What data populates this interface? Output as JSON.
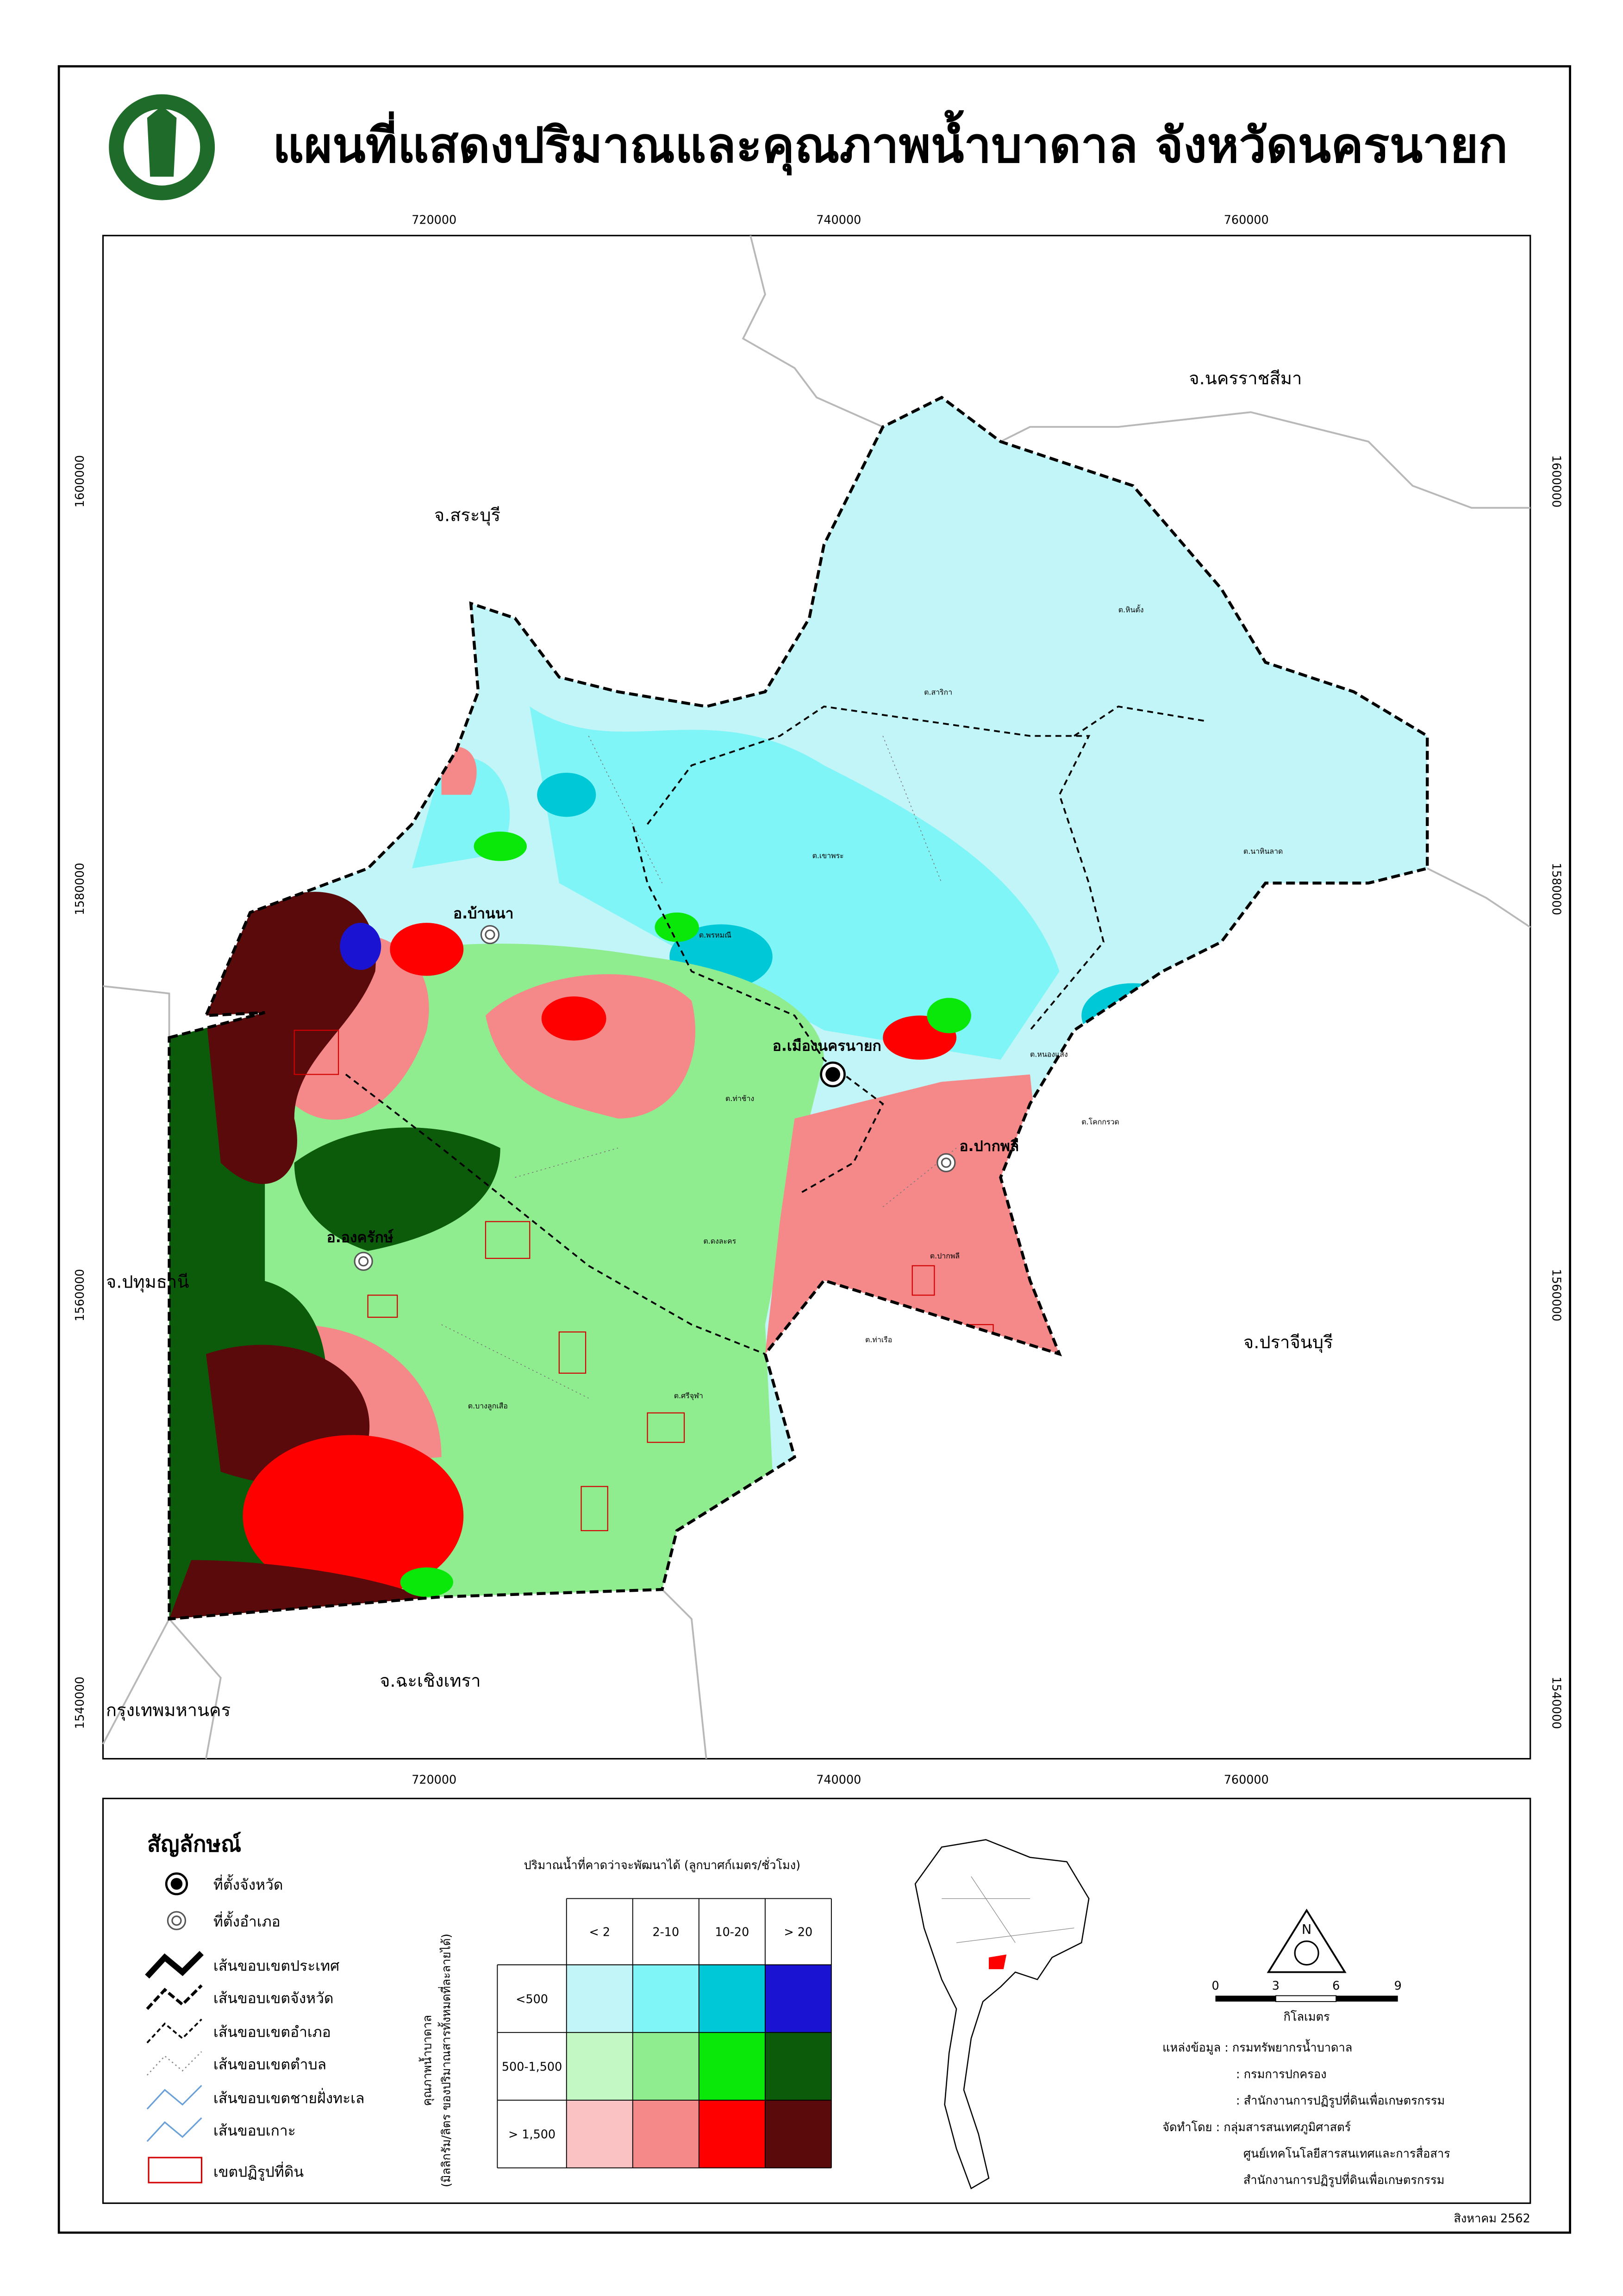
{
  "header": {
    "title": "แผนที่แสดงปริมาณและคุณภาพน้ำบาดาล จังหวัดนครนายก"
  },
  "map": {
    "coords_x": [
      720000,
      740000,
      760000
    ],
    "coords_y": [
      1600000,
      1580000,
      1560000,
      1540000
    ],
    "provinces": [
      "จ.สระบุรี",
      "จ.นครราชสีมา",
      "จ.ปทุมธานี",
      "จ.ปราจีนบุรี",
      "จ.ฉะเชิงเทรา",
      "กรุงเทพมหานคร"
    ],
    "districts": [
      "อ.บ้านนา",
      "อ.เมืองนครนายก",
      "อ.ปากพลี",
      "อ.องครักษ์"
    ],
    "subdistricts": [
      "ต.หินตั้ง",
      "ต.สาริกา",
      "ต.เขาพระ",
      "ต.นาหินลาด",
      "ต.พรหมณี",
      "ต.หนองแสง",
      "ต.โคกกรวด",
      "ต.ปากพลี",
      "ต.ท่าเรือ",
      "ต.ศรีจุฬา",
      "ต.บางลูกเสือ",
      "ต.ดงละคร",
      "ต.ท่าช้าง"
    ]
  },
  "legend": {
    "title": "สัญลักษณ์",
    "symbols": [
      "ที่ตั้งจังหวัด",
      "ที่ตั้งอำเภอ",
      "เส้นขอบเขตประเทศ",
      "เส้นขอบเขตจังหวัด",
      "เส้นขอบเขตอำเภอ",
      "เส้นขอบเขตตำบล",
      "เส้นขอบเขตชายฝั่งทะเล",
      "เส้นขอบเกาะ",
      "เขตปฏิรูปที่ดิน"
    ],
    "matrix": {
      "title": "ปริมาณน้ำที่คาดว่าจะพัฒนาได้ (ลูกบาศก์เมตร/ชั่วโมง)",
      "axis_label": "คุณภาพน้ำบาดาล",
      "axis_unit": "(มิลลิกรัม/ลิตร ของปริมาณสารทั้งหมดที่ละลายได้)",
      "columns": [
        "< 2",
        "2-10",
        "10-20",
        "> 20"
      ],
      "rows": [
        "<500",
        "500-1,500",
        "> 1,500"
      ],
      "colors": [
        [
          "#c2f5f7",
          "#7ff5f7",
          "#00c8d7",
          "#1a14d2"
        ],
        [
          "#c3f7c3",
          "#8fed8f",
          "#0ae80a",
          "#0b5b0b"
        ],
        [
          "#fbc2c4",
          "#f58888",
          "#ff0000",
          "#5a0a0a"
        ]
      ]
    }
  },
  "scale": {
    "ticks": [
      0,
      3,
      6,
      9
    ],
    "unit": "กิโลเมตร"
  },
  "credits": [
    "แหล่งข้อมูล : กรมทรัพยากรน้ำบาดาล",
    ": กรมการปกครอง",
    ": สำนักงานการปฏิรูปที่ดินเพื่อเกษตรกรรม",
    "จัดทำโดย : กลุ่มสารสนเทศภูมิศาสตร์",
    "ศูนย์เทคโนโลยีสารสนเทศและการสื่อสาร",
    "สำนักงานการปฏิรูปที่ดินเพื่อเกษตรกรรม"
  ],
  "date": "สิงหาคม 2562"
}
